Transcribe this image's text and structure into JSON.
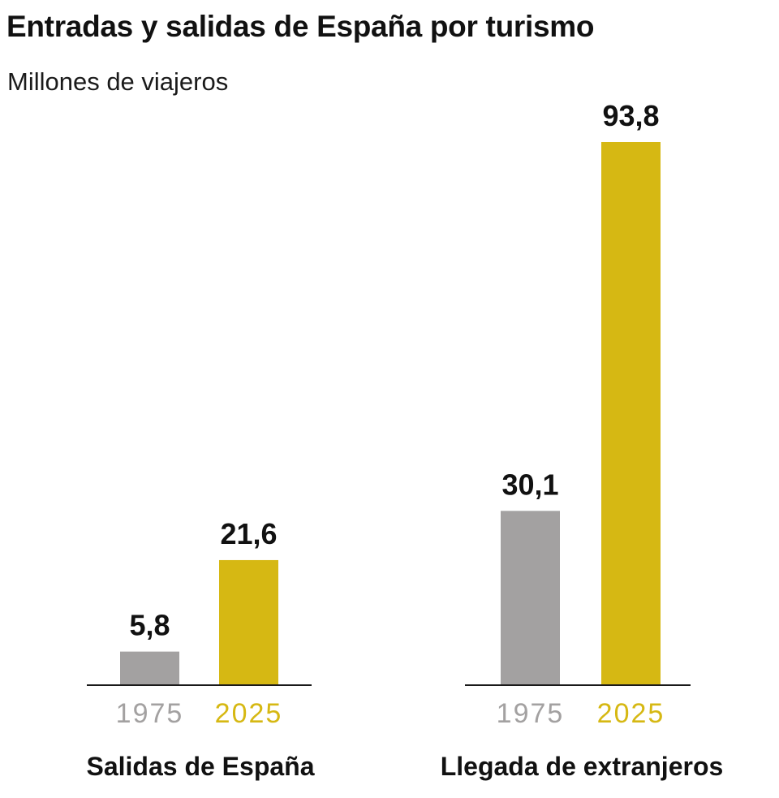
{
  "title": "Entradas y salidas de España por turismo",
  "subtitle": "Millones de viajeros",
  "colors": {
    "y1975": "#a3a1a1",
    "y2025": "#d6b813",
    "axis": "#1a1a1a"
  },
  "chart_data": {
    "type": "bar",
    "title": "Entradas y salidas de España por turismo",
    "ylabel": "Millones de viajeros",
    "ylim": [
      0,
      93.8
    ],
    "categories": [
      "Salidas de España",
      "Llegada de extranjeros"
    ],
    "series": [
      {
        "name": "1975",
        "values": [
          5.8,
          30.1
        ],
        "labels": [
          "5,8",
          "30,1"
        ]
      },
      {
        "name": "2025",
        "values": [
          21.6,
          93.8
        ],
        "labels": [
          "21,6",
          "93,8"
        ]
      }
    ],
    "year_labels": [
      "1975",
      "2025"
    ]
  }
}
